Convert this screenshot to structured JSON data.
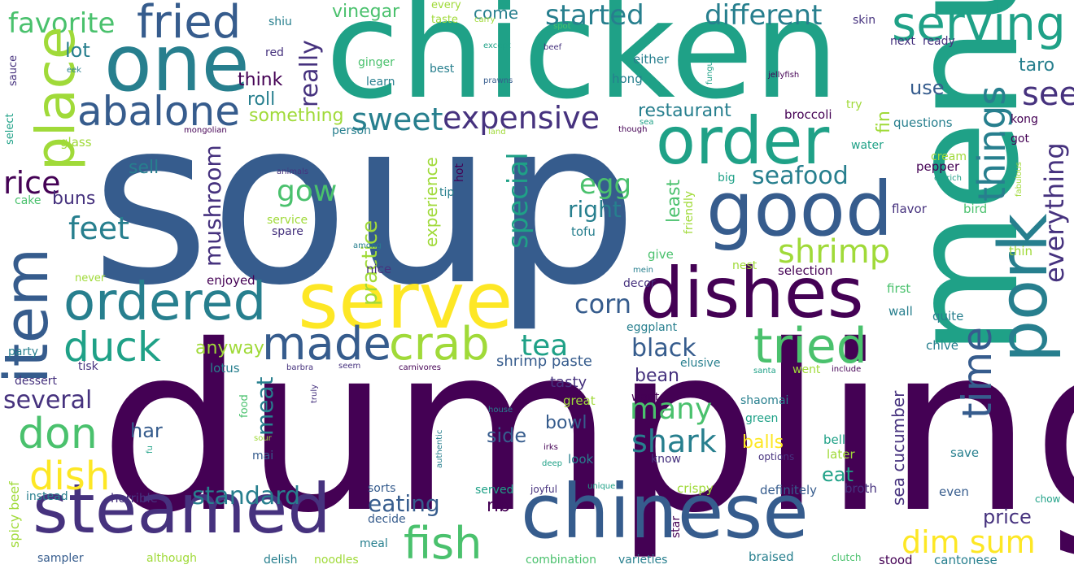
{
  "palette": {
    "dark_purple": "#440154",
    "indigo": "#46327e",
    "blue": "#365c8d",
    "teal_blue": "#277f8e",
    "teal": "#1fa187",
    "green": "#4ac16d",
    "lime": "#a0da39",
    "yellow": "#fde725"
  },
  "words": {
    "soup": "soup",
    "dumpling": "dumpling",
    "chicken": "chicken",
    "menu": "menu",
    "one": "one",
    "fried": "fried",
    "favorite": "favorite",
    "abalone": "abalone",
    "place": "place",
    "item": "item",
    "serving": "serving",
    "order": "order",
    "good": "good",
    "serve": "serve",
    "dishes": "dishes",
    "ordered": "ordered",
    "steamed": "steamed",
    "chinese": "chinese",
    "pork": "pork",
    "things": "things",
    "time": "time",
    "tried": "tried",
    "crab": "crab",
    "fish": "fish",
    "made": "made",
    "duck": "duck",
    "don": "don",
    "dish": "dish",
    "sweet": "sweet",
    "expensive": "expensive",
    "different": "different",
    "started": "started",
    "rice": "rice",
    "feet": "feet",
    "shrimp": "shrimp",
    "dim_sum": "dim sum",
    "special": "special",
    "everything": "everything",
    "see": "see",
    "tea": "tea",
    "shark": "shark",
    "many": "many",
    "several": "several",
    "corn": "corn",
    "seafood": "seafood",
    "gow": "gow",
    "egg": "egg",
    "right": "right",
    "black": "black",
    "standard": "standard",
    "eating": "eating",
    "practice": "practice",
    "mushroom": "mushroom",
    "really": "really",
    "meat": "meat",
    "anyway": "anyway",
    "lot": "lot",
    "buns": "buns",
    "sell": "sell",
    "vinegar": "vinegar",
    "come": "come",
    "restaurant": "restaurant",
    "taro": "taro",
    "use": "use",
    "roll": "roll",
    "something": "something",
    "think": "think",
    "bowl": "bowl",
    "side": "side",
    "har": "har",
    "bean": "bean",
    "price": "price",
    "balls": "balls",
    "eat": "eat",
    "sea_cucumber": "sea cucumber",
    "least": "least",
    "experience": "experience",
    "fin": "fin",
    "shrimp_paste": "shrimp paste",
    "rib": "rib",
    "tasty": "tasty",
    "spicy_beef": "spicy beef",
    "sauce": "sauce",
    "select": "select",
    "glass": "glass",
    "cake": "cake",
    "eek": "eek",
    "mongolian": "mongolian",
    "animals": "animals",
    "service": "service",
    "spare": "spare",
    "among": "among",
    "red": "red",
    "ginger": "ginger",
    "learn": "learn",
    "person": "person",
    "hot": "hot",
    "tip": "tip",
    "shiu": "shiu",
    "every": "every",
    "taste": "taste",
    "carry": "carry",
    "spot": "spot",
    "beef": "beef",
    "except": "except",
    "prawns": "prawns",
    "best": "best",
    "either": "either",
    "hong": "hong",
    "land": "land",
    "broccoli": "broccoli",
    "though": "though",
    "sea": "sea",
    "try": "try",
    "jellyfish": "jellyfish",
    "fungus": "fungus",
    "next": "next",
    "ready": "ready",
    "skin": "skin",
    "questions": "questions",
    "kong": "kong",
    "got": "got",
    "water": "water",
    "cream": "cream",
    "pepper": "pepper",
    "ostrich": "ostrich",
    "fabulous": "fabulous",
    "big": "big",
    "friendly": "friendly",
    "flavor": "flavor",
    "bird": "bird",
    "tofu": "tofu",
    "give": "give",
    "nest": "nest",
    "thin": "thin",
    "selection": "selection",
    "mein": "mein",
    "decor": "decor",
    "first": "first",
    "quite": "quite",
    "eggplant": "eggplant",
    "wall": "wall",
    "elusive": "elusive",
    "chive": "chive",
    "went": "went",
    "include": "include",
    "santa": "santa",
    "shaomai": "shaomai",
    "green": "green",
    "bell": "bell",
    "later": "later",
    "save": "save",
    "options": "options",
    "even": "even",
    "chow": "chow",
    "broth": "broth",
    "definitely": "definitely",
    "crispy": "crispy",
    "braised": "braised",
    "clutch": "clutch",
    "stood": "stood",
    "cantonese": "cantonese",
    "star": "star",
    "know": "know",
    "want": "want",
    "great": "great",
    "look": "look",
    "joyful": "joyful",
    "unique": "unique",
    "served": "served",
    "combination": "combination",
    "varieties": "varieties",
    "sorts": "sorts",
    "decide": "decide",
    "meal": "meal",
    "noodles": "noodles",
    "delish": "delish",
    "although": "although",
    "sampler": "sampler",
    "horrible": "horrible",
    "instead": "instead",
    "mai": "mai",
    "food": "food",
    "sour": "sour",
    "fu": "fu",
    "truly": "truly",
    "authentic": "authentic",
    "house": "house",
    "irks": "irks",
    "deep": "deep",
    "lotus": "lotus",
    "party": "party",
    "tisk": "tisk",
    "dessert": "dessert",
    "barbra": "barbra",
    "seem": "seem",
    "carnivores": "carnivores",
    "nice": "nice",
    "never": "never",
    "enjoyed": "enjoyed"
  }
}
